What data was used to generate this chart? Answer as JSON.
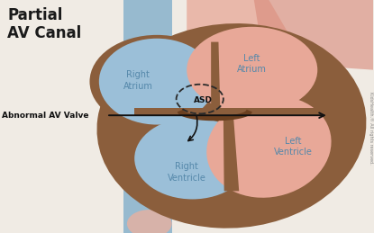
{
  "title": "Partial\nAV Canal",
  "title_fontsize": 12,
  "bg_color": "#f0ebe4",
  "heart_brown": "#8b5e3c",
  "heart_brown_dark": "#6b4020",
  "right_atrium_color": "#9bbfd8",
  "left_atrium_color": "#e8a898",
  "right_ventricle_color": "#9bbfd8",
  "left_ventricle_color": "#e8a898",
  "vena_blue": "#7aaac8",
  "aorta_red": "#d88878",
  "aorta_pink": "#e8b0a0",
  "text_color": "#5588aa",
  "arrow_color": "#111111",
  "label_right_atrium": "Right\nAtrium",
  "label_left_atrium": "Left\nAtrium",
  "label_right_ventricle": "Right\nVentricle",
  "label_left_ventricle": "Left\nVentricle",
  "label_asd": "ASD",
  "label_valve": "Abnormal AV Valve",
  "copyright": "KidsHealth.® All rights reserved."
}
